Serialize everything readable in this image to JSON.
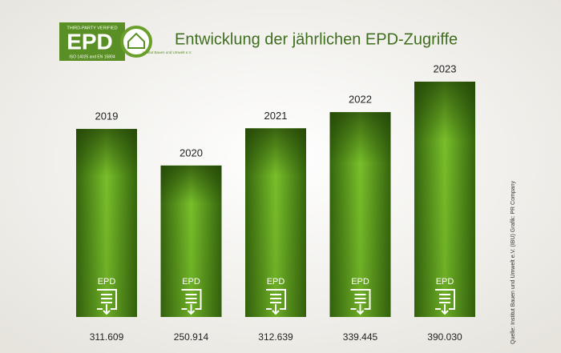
{
  "chart_data": {
    "type": "bar",
    "title": "Entwicklung der jährlichen EPD-Zugriffe",
    "logo": {
      "text": "EPD",
      "top_text": "THIRD-PARTY VERIFIED",
      "bottom_text": "ISO 14025 and EN 15804",
      "emblem_text": "Institut Bauen und Umwelt e.V."
    },
    "categories": [
      "2019",
      "2020",
      "2021",
      "2022",
      "2023"
    ],
    "values": [
      311609,
      250914,
      312639,
      339445,
      390030
    ],
    "value_labels": [
      "311.609",
      "250.914",
      "312.639",
      "339.445",
      "390.030"
    ],
    "bar_label": "EPD",
    "color": "#5fa521",
    "source": "Quelle: Institut Bauen und Umwelt e.V. (IBU)   Grafik: PR Company"
  }
}
